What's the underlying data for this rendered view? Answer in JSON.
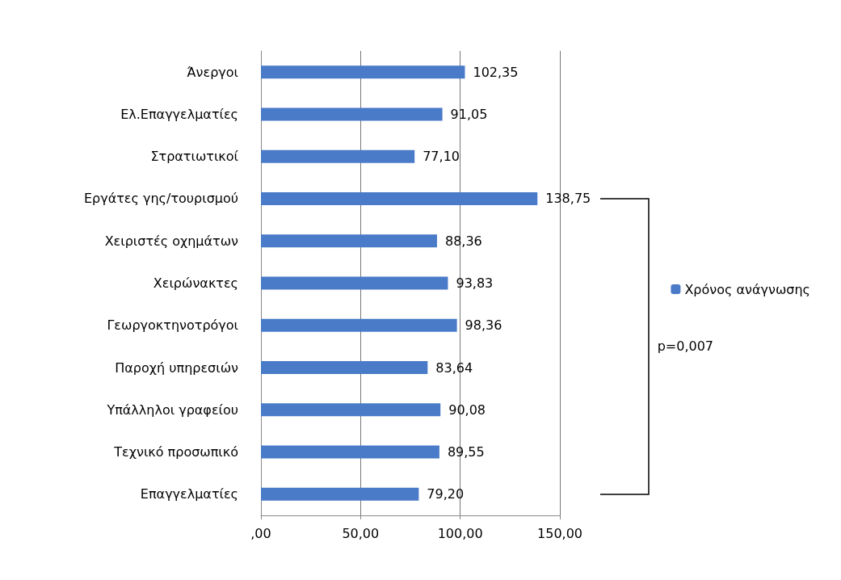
{
  "chart_data": {
    "type": "bar",
    "orientation": "horizontal",
    "categories": [
      "Άνεργοι",
      "Ελ.Επαγγελματίες",
      "Στρατιωτικοί",
      "Εργάτες γης/τουρισμού",
      "Χειριστές οχημάτων",
      "Χειρώνακτες",
      "Γεωργοκτηνοτρόγοι",
      "Παροχή υπηρεσιών",
      "Υπάλληλοι γραφείου",
      "Τεχνικό προσωπικό",
      "Επαγγελματίες"
    ],
    "series": [
      {
        "name": "Χρόνος ανάγνωσης",
        "color": "#4a7bc8",
        "values": [
          102.35,
          91.05,
          77.1,
          138.75,
          88.36,
          93.83,
          98.36,
          83.64,
          90.08,
          89.55,
          79.2
        ],
        "value_labels": [
          "102,35",
          "91,05",
          "77,10",
          "138,75",
          "88,36",
          "93,83",
          "98,36",
          "83,64",
          "90,08",
          "89,55",
          "79,20"
        ]
      }
    ],
    "xlim": [
      0,
      150
    ],
    "xticks": [
      {
        "value": 0,
        "label": ",00"
      },
      {
        "value": 50,
        "label": "50,00"
      },
      {
        "value": 100,
        "label": "100,00"
      },
      {
        "value": 150,
        "label": "150,00"
      }
    ],
    "grid": "x",
    "legend": "right",
    "annotations": [
      "p=0,007"
    ]
  }
}
